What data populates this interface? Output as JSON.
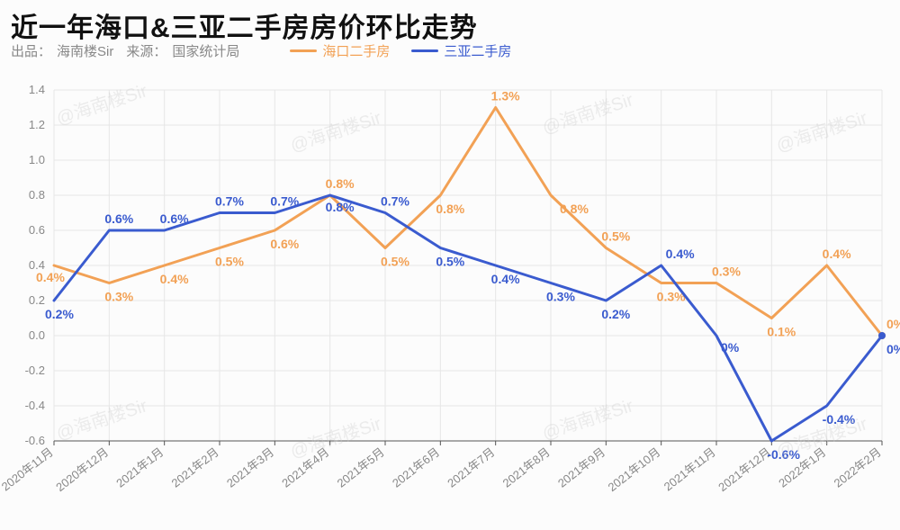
{
  "title": "近一年海口&三亚二手房房价环比走势",
  "subtitle_prefix": "出品：",
  "author": "海南楼Sir",
  "source_prefix": "来源：",
  "source": "国家统计局",
  "watermark_text": "@海南楼Sir",
  "legend": {
    "haikou": {
      "label": "海口二手房",
      "color": "#f2a155"
    },
    "sanya": {
      "label": "三亚二手房",
      "color": "#3a5bcf"
    }
  },
  "chart": {
    "type": "line",
    "background_color": "#fcfcfc",
    "grid_color": "#e6e6e6",
    "axis_color": "#555555",
    "tick_label_color": "#888888",
    "tick_fontsize": 13,
    "ylim": [
      -0.6,
      1.4
    ],
    "ytick_step": 0.2,
    "categories": [
      "2020年11月",
      "2020年12月",
      "2021年1月",
      "2021年2月",
      "2021年3月",
      "2021年4月",
      "2021年5月",
      "2021年6月",
      "2021年7月",
      "2021年8月",
      "2021年9月",
      "2021年10月",
      "2021年11月",
      "2021年12月",
      "2022年1月",
      "2022年2月"
    ],
    "series": [
      {
        "name": "haikou",
        "label": "海口二手房",
        "color": "#f2a155",
        "line_width": 3,
        "values": [
          0.4,
          0.3,
          0.4,
          0.5,
          0.6,
          0.8,
          0.5,
          0.8,
          1.3,
          0.8,
          0.5,
          0.3,
          0.3,
          0.1,
          0.4,
          0.0
        ],
        "label_offsets": [
          {
            "dx": -20,
            "dy": 18
          },
          {
            "dx": -5,
            "dy": 20
          },
          {
            "dx": -5,
            "dy": 20
          },
          {
            "dx": -5,
            "dy": 20
          },
          {
            "dx": -5,
            "dy": 20
          },
          {
            "dx": -5,
            "dy": -8
          },
          {
            "dx": -5,
            "dy": 20
          },
          {
            "dx": -5,
            "dy": 20
          },
          {
            "dx": -5,
            "dy": -8
          },
          {
            "dx": 10,
            "dy": 20
          },
          {
            "dx": -5,
            "dy": -8
          },
          {
            "dx": -5,
            "dy": 20
          },
          {
            "dx": -5,
            "dy": -8
          },
          {
            "dx": -5,
            "dy": 20
          },
          {
            "dx": -5,
            "dy": -8
          },
          {
            "dx": 5,
            "dy": -8
          }
        ]
      },
      {
        "name": "sanya",
        "label": "三亚二手房",
        "color": "#3a5bcf",
        "line_width": 3,
        "values": [
          0.2,
          0.6,
          0.6,
          0.7,
          0.7,
          0.8,
          0.7,
          0.5,
          0.4,
          0.3,
          0.2,
          0.4,
          0.0,
          -0.6,
          -0.4,
          0.0
        ],
        "label_offsets": [
          {
            "dx": -10,
            "dy": 20
          },
          {
            "dx": -5,
            "dy": -8
          },
          {
            "dx": -5,
            "dy": -8
          },
          {
            "dx": -5,
            "dy": -8
          },
          {
            "dx": -5,
            "dy": -8
          },
          {
            "dx": -5,
            "dy": 18
          },
          {
            "dx": -5,
            "dy": -8
          },
          {
            "dx": -5,
            "dy": 20
          },
          {
            "dx": -5,
            "dy": 20
          },
          {
            "dx": -5,
            "dy": 20
          },
          {
            "dx": -5,
            "dy": 20
          },
          {
            "dx": 5,
            "dy": -8
          },
          {
            "dx": 5,
            "dy": 18
          },
          {
            "dx": -5,
            "dy": 20
          },
          {
            "dx": -5,
            "dy": 20
          },
          {
            "dx": 5,
            "dy": 20
          }
        ]
      }
    ]
  }
}
